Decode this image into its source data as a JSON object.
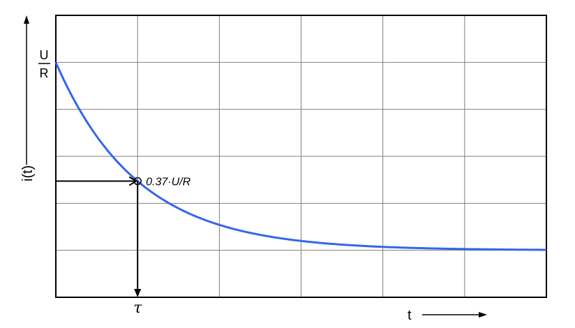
{
  "chart_data": {
    "type": "line",
    "title": "",
    "xlabel": "t",
    "ylabel": "i(t)",
    "y_max_label_top": "U",
    "y_max_label_bottom": "R",
    "tau_label": "τ",
    "annotation_label": "0.37·U/R",
    "function": "i(t) = (U/R)·exp(-t/τ)",
    "x_unit": "τ",
    "y_unit": "U/R",
    "xlim": [
      0,
      6
    ],
    "ylim": [
      -0.25,
      1.25
    ],
    "grid": true,
    "series": [
      {
        "color": "#3366ee",
        "x": [
          0,
          0.25,
          0.5,
          0.75,
          1,
          1.25,
          1.5,
          1.75,
          2,
          2.5,
          3,
          3.5,
          4,
          4.5,
          5,
          5.5,
          6
        ],
        "y": [
          1.0,
          0.779,
          0.607,
          0.472,
          0.368,
          0.287,
          0.223,
          0.174,
          0.135,
          0.082,
          0.05,
          0.03,
          0.018,
          0.011,
          0.007,
          0.004,
          0.002
        ]
      }
    ],
    "annotation_point": {
      "x": 1,
      "y": 0.368
    }
  }
}
